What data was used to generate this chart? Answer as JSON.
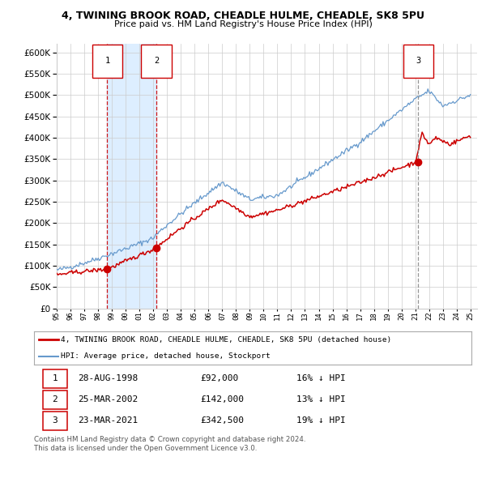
{
  "title": "4, TWINING BROOK ROAD, CHEADLE HULME, CHEADLE, SK8 5PU",
  "subtitle": "Price paid vs. HM Land Registry's House Price Index (HPI)",
  "ytick_values": [
    0,
    50000,
    100000,
    150000,
    200000,
    250000,
    300000,
    350000,
    400000,
    450000,
    500000,
    550000,
    600000
  ],
  "x_start_year": 1995,
  "x_end_year": 2025,
  "sale_year_floats": [
    1998.66,
    2002.22,
    2021.22
  ],
  "sale_prices": [
    92000,
    142000,
    342500
  ],
  "sale_labels": [
    "1",
    "2",
    "3"
  ],
  "legend_red": "4, TWINING BROOK ROAD, CHEADLE HULME, CHEADLE, SK8 5PU (detached house)",
  "legend_blue": "HPI: Average price, detached house, Stockport",
  "table_data": [
    [
      "1",
      "28-AUG-1998",
      "£92,000",
      "16% ↓ HPI"
    ],
    [
      "2",
      "25-MAR-2002",
      "£142,000",
      "13% ↓ HPI"
    ],
    [
      "3",
      "23-MAR-2021",
      "£342,500",
      "19% ↓ HPI"
    ]
  ],
  "footnote1": "Contains HM Land Registry data © Crown copyright and database right 2024.",
  "footnote2": "This data is licensed under the Open Government Licence v3.0.",
  "red_color": "#cc0000",
  "blue_color": "#6699cc",
  "shade_color": "#ddeeff",
  "grid_color": "#cccccc",
  "background_color": "#ffffff"
}
